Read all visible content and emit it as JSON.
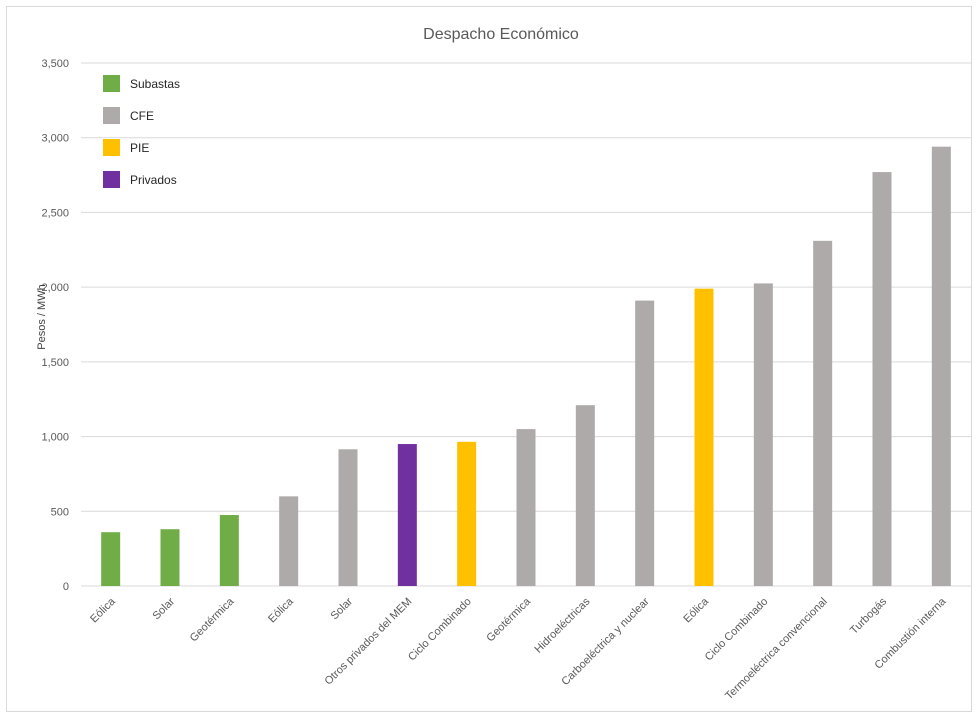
{
  "chart_data": {
    "type": "bar",
    "title": "Despacho Económico",
    "xlabel": "",
    "ylabel": "Pesos / MWh",
    "ylim": [
      0,
      3500
    ],
    "yticks": [
      0,
      500,
      1000,
      1500,
      2000,
      2500,
      3000,
      3500
    ],
    "ytick_labels": [
      "0",
      "500",
      "1,000",
      "1,500",
      "2,000",
      "2,500",
      "3,000",
      "3,500"
    ],
    "grid": true,
    "legend_position": "top-left",
    "legend": [
      {
        "name": "Subastas",
        "color": "#70ad47"
      },
      {
        "name": "CFE",
        "color": "#aeaaaa"
      },
      {
        "name": "PIE",
        "color": "#ffc000"
      },
      {
        "name": "Privados",
        "color": "#7030a0"
      }
    ],
    "categories": [
      "Eólica",
      "Solar",
      "Geotérmica",
      "Eólica",
      "Solar",
      "Otros privados del MEM",
      "Ciclo Combinado",
      "Geotérmica",
      "Hidroeléctricas",
      "Carboeléctrica y nuclear",
      "Eólica",
      "Ciclo Combinado",
      "Termoeléctrica convencional",
      "Turbogás",
      "Combustión interna"
    ],
    "values": [
      360,
      380,
      475,
      600,
      915,
      950,
      965,
      1050,
      1210,
      1910,
      1990,
      2025,
      2310,
      2770,
      2940
    ],
    "groups": [
      "Subastas",
      "Subastas",
      "Subastas",
      "CFE",
      "CFE",
      "Privados",
      "PIE",
      "CFE",
      "CFE",
      "CFE",
      "PIE",
      "CFE",
      "CFE",
      "CFE",
      "CFE"
    ]
  }
}
